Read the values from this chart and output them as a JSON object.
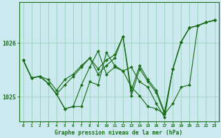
{
  "title": "Graphe pression niveau de la mer (hPa)",
  "bg_color": "#cde9f0",
  "grid_color": "#9ecfbe",
  "line_color": "#1a6e1a",
  "yticks": [
    1025,
    1026
  ],
  "xlim": [
    -0.5,
    23.5
  ],
  "ylim": [
    1024.55,
    1026.75
  ],
  "series": [
    [
      1025.68,
      1025.35,
      1025.38,
      1025.25,
      1025.05,
      1024.78,
      1024.82,
      1024.82,
      1025.28,
      1025.22,
      1025.82,
      1025.58,
      1025.48,
      1025.18,
      1025.02,
      1024.82,
      1024.78,
      1024.68,
      1024.88,
      1025.18,
      1025.22,
      1026.32,
      1026.38,
      1026.42
    ],
    [
      1025.68,
      1025.35,
      1025.38,
      1025.25,
      1025.05,
      1024.78,
      1024.82,
      1025.22,
      1025.55,
      1025.85,
      1025.42,
      1025.55,
      1025.48,
      1025.55,
      1025.28,
      1025.18,
      1024.88,
      1024.62,
      1025.52,
      1026.02,
      1026.28,
      1026.32,
      1026.38,
      1026.42
    ],
    [
      1025.68,
      1025.35,
      1025.38,
      1025.25,
      1025.05,
      1025.22,
      1025.38,
      1025.55,
      1025.72,
      1025.42,
      1025.58,
      1025.72,
      1026.12,
      1025.02,
      1025.52,
      1025.28,
      1025.08,
      1024.68,
      1025.52,
      1026.02,
      1026.28,
      1026.32,
      1026.38,
      1026.42
    ],
    [
      1025.68,
      1025.35,
      1025.38,
      1025.32,
      1025.12,
      1025.32,
      1025.42,
      1025.58,
      1025.72,
      1025.52,
      1025.68,
      1025.78,
      1026.12,
      1025.12,
      1025.58,
      1025.32,
      1025.12,
      1024.72,
      1025.52,
      1026.02,
      1026.28,
      1026.32,
      1026.38,
      1026.42
    ]
  ],
  "xlabel_fontsize": 5.8,
  "ytick_fontsize": 6.0,
  "xtick_fontsize": 4.5
}
